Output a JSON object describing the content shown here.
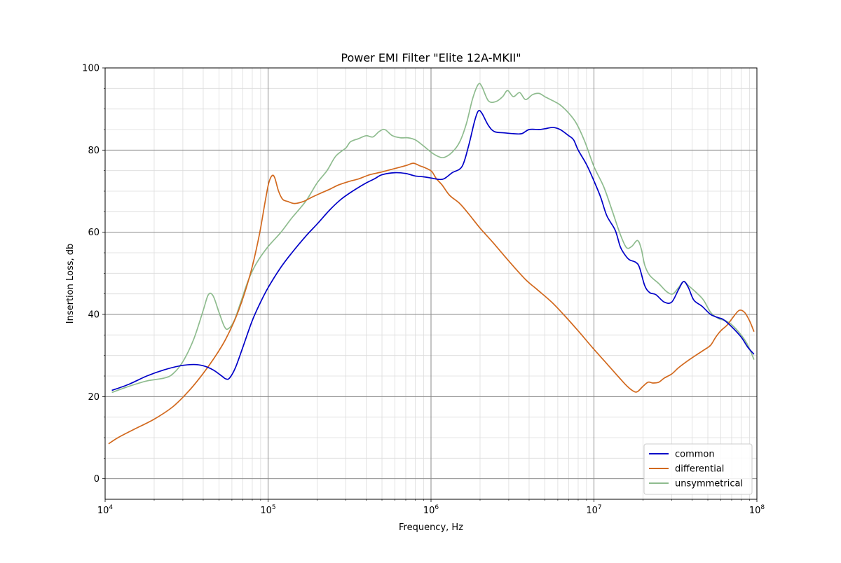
{
  "chart_data": {
    "type": "line",
    "title": "Power EMI Filter \"Elite 12A-MKII\"",
    "xlabel": "Frequency, Hz",
    "ylabel": "Insertion Loss, db",
    "xscale": "log",
    "xlim": [
      10000,
      100000000
    ],
    "ylim": [
      -5,
      100
    ],
    "grid": true,
    "legend_position": "lower right",
    "x_ticks": [
      {
        "value": 10000,
        "base": "10",
        "exp": "4"
      },
      {
        "value": 100000,
        "base": "10",
        "exp": "5"
      },
      {
        "value": 1000000,
        "base": "10",
        "exp": "6"
      },
      {
        "value": 10000000,
        "base": "10",
        "exp": "7"
      },
      {
        "value": 100000000,
        "base": "10",
        "exp": "8"
      }
    ],
    "y_ticks": [
      0,
      20,
      40,
      60,
      80,
      100
    ],
    "series": [
      {
        "name": "common",
        "color": "#0000c8",
        "points": [
          [
            11000,
            21.5
          ],
          [
            14000,
            23.0
          ],
          [
            18000,
            25.0
          ],
          [
            23000,
            26.5
          ],
          [
            29000,
            27.5
          ],
          [
            35000,
            27.8
          ],
          [
            40000,
            27.5
          ],
          [
            46000,
            26.5
          ],
          [
            52000,
            25.0
          ],
          [
            55000,
            24.3
          ],
          [
            58000,
            24.5
          ],
          [
            63000,
            27.0
          ],
          [
            70000,
            32.0
          ],
          [
            80000,
            38.5
          ],
          [
            90000,
            43.0
          ],
          [
            100000,
            46.5
          ],
          [
            120000,
            51.5
          ],
          [
            140000,
            55.0
          ],
          [
            170000,
            59.0
          ],
          [
            200000,
            62.0
          ],
          [
            240000,
            65.5
          ],
          [
            280000,
            68.0
          ],
          [
            330000,
            70.0
          ],
          [
            400000,
            72.0
          ],
          [
            450000,
            73.0
          ],
          [
            500000,
            74.0
          ],
          [
            600000,
            74.5
          ],
          [
            700000,
            74.3
          ],
          [
            800000,
            73.7
          ],
          [
            900000,
            73.5
          ],
          [
            1000000,
            73.2
          ],
          [
            1100000,
            72.9
          ],
          [
            1200000,
            73.0
          ],
          [
            1350000,
            74.5
          ],
          [
            1550000,
            76.0
          ],
          [
            1700000,
            81.0
          ],
          [
            1850000,
            87.0
          ],
          [
            1950000,
            89.5
          ],
          [
            2050000,
            89.0
          ],
          [
            2250000,
            86.0
          ],
          [
            2450000,
            84.5
          ],
          [
            2800000,
            84.2
          ],
          [
            3200000,
            84.0
          ],
          [
            3600000,
            84.0
          ],
          [
            4000000,
            85.0
          ],
          [
            4600000,
            85.0
          ],
          [
            5000000,
            85.2
          ],
          [
            5600000,
            85.5
          ],
          [
            6200000,
            85.0
          ],
          [
            7000000,
            83.5
          ],
          [
            7500000,
            82.5
          ],
          [
            8000000,
            80.0
          ],
          [
            9000000,
            76.5
          ],
          [
            10000000,
            72.5
          ],
          [
            11000000,
            68.5
          ],
          [
            12000000,
            64.0
          ],
          [
            13500000,
            60.5
          ],
          [
            14500000,
            56.5
          ],
          [
            15500000,
            54.5
          ],
          [
            16500000,
            53.3
          ],
          [
            18000000,
            52.7
          ],
          [
            19000000,
            51.5
          ],
          [
            20500000,
            47.0
          ],
          [
            22000000,
            45.3
          ],
          [
            24000000,
            44.8
          ],
          [
            27000000,
            43.0
          ],
          [
            30000000,
            43.0
          ],
          [
            33000000,
            46.0
          ],
          [
            35500000,
            48.0
          ],
          [
            38000000,
            46.5
          ],
          [
            41000000,
            43.5
          ],
          [
            46000000,
            42.0
          ],
          [
            52000000,
            40.0
          ],
          [
            58000000,
            39.2
          ],
          [
            62000000,
            38.8
          ],
          [
            70000000,
            37.0
          ],
          [
            80000000,
            34.5
          ],
          [
            88000000,
            32.0
          ],
          [
            96000000,
            30.3
          ]
        ]
      },
      {
        "name": "differential",
        "color": "#d2691e",
        "points": [
          [
            10500,
            8.5
          ],
          [
            12000,
            10.0
          ],
          [
            15000,
            12.0
          ],
          [
            20000,
            14.5
          ],
          [
            26000,
            17.5
          ],
          [
            32000,
            21.0
          ],
          [
            38000,
            24.5
          ],
          [
            46000,
            29.0
          ],
          [
            55000,
            34.0
          ],
          [
            66000,
            41.0
          ],
          [
            78000,
            50.0
          ],
          [
            88000,
            59.0
          ],
          [
            96000,
            67.5
          ],
          [
            101000,
            72.0
          ],
          [
            106000,
            73.8
          ],
          [
            110000,
            73.2
          ],
          [
            116000,
            70.0
          ],
          [
            123000,
            68.0
          ],
          [
            132000,
            67.5
          ],
          [
            145000,
            67.0
          ],
          [
            165000,
            67.5
          ],
          [
            185000,
            68.5
          ],
          [
            210000,
            69.5
          ],
          [
            240000,
            70.5
          ],
          [
            270000,
            71.5
          ],
          [
            310000,
            72.3
          ],
          [
            360000,
            73.0
          ],
          [
            420000,
            74.0
          ],
          [
            490000,
            74.6
          ],
          [
            560000,
            75.2
          ],
          [
            640000,
            75.8
          ],
          [
            710000,
            76.3
          ],
          [
            780000,
            76.8
          ],
          [
            850000,
            76.2
          ],
          [
            930000,
            75.6
          ],
          [
            1010000,
            74.8
          ],
          [
            1080000,
            73.0
          ],
          [
            1170000,
            71.5
          ],
          [
            1300000,
            69.0
          ],
          [
            1500000,
            67.0
          ],
          [
            1700000,
            64.5
          ],
          [
            2000000,
            61.0
          ],
          [
            2400000,
            57.5
          ],
          [
            3000000,
            53.0
          ],
          [
            3800000,
            48.5
          ],
          [
            4500000,
            46.0
          ],
          [
            5500000,
            43.0
          ],
          [
            6500000,
            40.0
          ],
          [
            8000000,
            36.0
          ],
          [
            10000000,
            31.5
          ],
          [
            12000000,
            28.0
          ],
          [
            14000000,
            25.0
          ],
          [
            16000000,
            22.5
          ],
          [
            17500000,
            21.3
          ],
          [
            18500000,
            21.2
          ],
          [
            20000000,
            22.5
          ],
          [
            21500000,
            23.5
          ],
          [
            23000000,
            23.3
          ],
          [
            25000000,
            23.5
          ],
          [
            27000000,
            24.5
          ],
          [
            30000000,
            25.5
          ],
          [
            33000000,
            27.0
          ],
          [
            37000000,
            28.5
          ],
          [
            42000000,
            30.0
          ],
          [
            48000000,
            31.5
          ],
          [
            52000000,
            32.5
          ],
          [
            56000000,
            34.5
          ],
          [
            60000000,
            36.0
          ],
          [
            66000000,
            37.5
          ],
          [
            72000000,
            39.5
          ],
          [
            78000000,
            41.0
          ],
          [
            84000000,
            40.5
          ],
          [
            90000000,
            38.5
          ],
          [
            96000000,
            35.8
          ]
        ]
      },
      {
        "name": "unsymmetrical",
        "color": "#8fbc8f",
        "points": [
          [
            11000,
            21.0
          ],
          [
            14000,
            22.5
          ],
          [
            18000,
            23.8
          ],
          [
            23000,
            24.5
          ],
          [
            26000,
            25.5
          ],
          [
            30000,
            28.5
          ],
          [
            35000,
            34.0
          ],
          [
            40000,
            41.0
          ],
          [
            43000,
            44.8
          ],
          [
            46000,
            44.5
          ],
          [
            50000,
            40.5
          ],
          [
            54000,
            37.0
          ],
          [
            57000,
            36.5
          ],
          [
            62000,
            38.5
          ],
          [
            68000,
            43.0
          ],
          [
            76000,
            48.5
          ],
          [
            85000,
            52.5
          ],
          [
            100000,
            56.5
          ],
          [
            120000,
            60.0
          ],
          [
            140000,
            63.5
          ],
          [
            170000,
            67.5
          ],
          [
            200000,
            72.0
          ],
          [
            230000,
            75.0
          ],
          [
            260000,
            78.5
          ],
          [
            300000,
            80.5
          ],
          [
            320000,
            82.0
          ],
          [
            360000,
            82.8
          ],
          [
            400000,
            83.5
          ],
          [
            440000,
            83.2
          ],
          [
            480000,
            84.5
          ],
          [
            520000,
            85.0
          ],
          [
            580000,
            83.5
          ],
          [
            650000,
            83.0
          ],
          [
            720000,
            83.0
          ],
          [
            800000,
            82.5
          ],
          [
            900000,
            81.0
          ],
          [
            1000000,
            79.5
          ],
          [
            1100000,
            78.5
          ],
          [
            1200000,
            78.2
          ],
          [
            1350000,
            79.5
          ],
          [
            1500000,
            82.0
          ],
          [
            1650000,
            86.5
          ],
          [
            1800000,
            92.5
          ],
          [
            1950000,
            96.0
          ],
          [
            2050000,
            95.5
          ],
          [
            2250000,
            92.0
          ],
          [
            2500000,
            91.8
          ],
          [
            2750000,
            93.0
          ],
          [
            2950000,
            94.5
          ],
          [
            3200000,
            93.0
          ],
          [
            3500000,
            94.0
          ],
          [
            3800000,
            92.3
          ],
          [
            4200000,
            93.5
          ],
          [
            4600000,
            93.8
          ],
          [
            5000000,
            93.0
          ],
          [
            5600000,
            92.0
          ],
          [
            6200000,
            91.0
          ],
          [
            7000000,
            89.0
          ],
          [
            7800000,
            86.5
          ],
          [
            8800000,
            82.0
          ],
          [
            10000000,
            76.0
          ],
          [
            11500000,
            71.0
          ],
          [
            13000000,
            65.0
          ],
          [
            14500000,
            59.5
          ],
          [
            15800000,
            56.3
          ],
          [
            17000000,
            56.5
          ],
          [
            18500000,
            58.0
          ],
          [
            19500000,
            56.0
          ],
          [
            20500000,
            52.0
          ],
          [
            22000000,
            49.5
          ],
          [
            25000000,
            47.5
          ],
          [
            28000000,
            45.5
          ],
          [
            30500000,
            45.0
          ],
          [
            33000000,
            46.5
          ],
          [
            35500000,
            48.0
          ],
          [
            38000000,
            47.0
          ],
          [
            42000000,
            45.5
          ],
          [
            47000000,
            43.5
          ],
          [
            52000000,
            40.5
          ],
          [
            58000000,
            39.0
          ],
          [
            64000000,
            38.5
          ],
          [
            70000000,
            37.5
          ],
          [
            80000000,
            35.0
          ],
          [
            88000000,
            32.5
          ],
          [
            96000000,
            29.0
          ]
        ]
      }
    ]
  }
}
